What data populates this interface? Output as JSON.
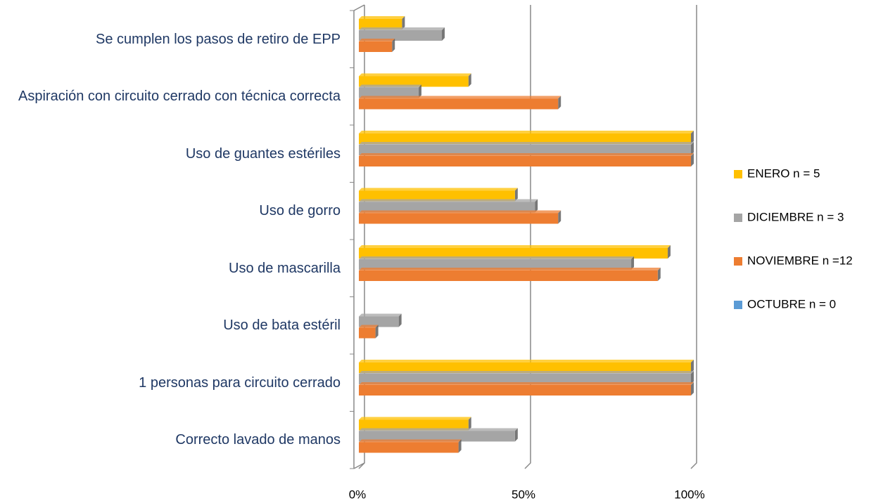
{
  "chart_data": {
    "type": "bar",
    "orientation": "horizontal",
    "categories": [
      "Se cumplen los pasos de retiro de EPP",
      "Aspiración con circuito cerrado con técnica correcta",
      "Uso de guantes estériles",
      "Uso de gorro",
      "Uso de mascarilla",
      "Uso de bata estéril",
      "1 personas para circuito cerrado",
      "Correcto lavado de manos"
    ],
    "series": [
      {
        "name": "ENERO n = 5",
        "color": "#FFC000",
        "values": [
          13,
          33,
          100,
          47,
          93,
          0,
          100,
          33
        ]
      },
      {
        "name": "DICIEMBRE n = 3",
        "color": "#A5A5A5",
        "values": [
          25,
          18,
          100,
          53,
          82,
          12,
          100,
          47
        ]
      },
      {
        "name": "NOVIEMBRE n =12",
        "color": "#ED7D31",
        "values": [
          10,
          60,
          100,
          60,
          90,
          5,
          100,
          30
        ]
      },
      {
        "name": "OCTUBRE n = 0",
        "color": "#5B9BD5",
        "values": [
          0,
          0,
          0,
          0,
          0,
          0,
          0,
          0
        ]
      }
    ],
    "xlim": [
      0,
      100
    ],
    "xticks": [
      {
        "value": 0,
        "label": "0%"
      },
      {
        "value": 50,
        "label": "50%"
      },
      {
        "value": 100,
        "label": "100%"
      }
    ],
    "grid": true,
    "legend": "right"
  }
}
